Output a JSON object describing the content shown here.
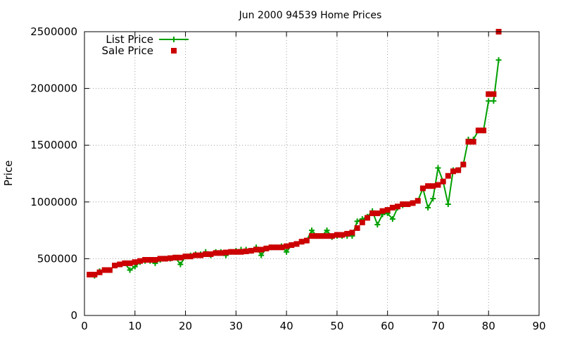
{
  "chart_data": {
    "type": "line",
    "title": "Jun 2000 94539 Home Prices",
    "xlabel": "",
    "ylabel": "Price",
    "xlim": [
      0,
      90
    ],
    "ylim": [
      0,
      2500000
    ],
    "x_ticks": [
      "0",
      "10",
      "20",
      "30",
      "40",
      "50",
      "60",
      "70",
      "80",
      "90"
    ],
    "y_ticks": [
      "0",
      "500000",
      "1000000",
      "1500000",
      "2000000",
      "2500000"
    ],
    "grid": true,
    "legend_position": "top-left",
    "x": [
      1,
      2,
      3,
      4,
      5,
      6,
      7,
      8,
      9,
      10,
      11,
      12,
      13,
      14,
      15,
      16,
      17,
      18,
      19,
      20,
      21,
      22,
      23,
      24,
      25,
      26,
      27,
      28,
      29,
      30,
      31,
      32,
      33,
      34,
      35,
      36,
      37,
      38,
      39,
      40,
      41,
      42,
      43,
      44,
      45,
      46,
      47,
      48,
      49,
      50,
      51,
      52,
      53,
      54,
      55,
      56,
      57,
      58,
      59,
      60,
      61,
      62,
      63,
      64,
      65,
      66,
      67,
      68,
      69,
      70,
      71,
      72,
      73,
      74,
      75,
      76,
      77,
      78,
      79,
      80,
      81,
      82
    ],
    "series": [
      {
        "name": "List Price",
        "color": "#00a000",
        "marker": "plus",
        "values": [
          360000,
          350000,
          390000,
          400000,
          400000,
          440000,
          450000,
          460000,
          400000,
          430000,
          470000,
          480000,
          480000,
          460000,
          490000,
          500000,
          500000,
          510000,
          450000,
          520000,
          530000,
          540000,
          540000,
          560000,
          530000,
          560000,
          560000,
          530000,
          560000,
          570000,
          580000,
          580000,
          570000,
          600000,
          530000,
          590000,
          600000,
          600000,
          610000,
          560000,
          620000,
          630000,
          650000,
          660000,
          750000,
          700000,
          700000,
          750000,
          690000,
          700000,
          700000,
          700000,
          700000,
          830000,
          850000,
          870000,
          920000,
          800000,
          890000,
          900000,
          850000,
          950000,
          970000,
          980000,
          990000,
          1010000,
          1120000,
          950000,
          1030000,
          1300000,
          1180000,
          980000,
          1280000,
          1280000,
          1330000,
          1550000,
          1550000,
          1630000,
          1630000,
          1890000,
          1890000,
          2250000
        ]
      },
      {
        "name": "Sale Price",
        "color": "#cc0000",
        "marker": "square",
        "values": [
          360000,
          360000,
          380000,
          400000,
          400000,
          440000,
          450000,
          460000,
          460000,
          470000,
          480000,
          490000,
          490000,
          490000,
          500000,
          500000,
          505000,
          510000,
          510000,
          520000,
          520000,
          530000,
          530000,
          540000,
          540000,
          550000,
          550000,
          555000,
          560000,
          560000,
          560000,
          565000,
          570000,
          580000,
          580000,
          590000,
          600000,
          600000,
          600000,
          610000,
          620000,
          630000,
          650000,
          660000,
          700000,
          700000,
          700000,
          700000,
          700000,
          710000,
          710000,
          720000,
          730000,
          770000,
          820000,
          860000,
          900000,
          900000,
          920000,
          930000,
          950000,
          960000,
          980000,
          980000,
          990000,
          1010000,
          1120000,
          1140000,
          1140000,
          1150000,
          1180000,
          1230000,
          1270000,
          1280000,
          1330000,
          1530000,
          1530000,
          1630000,
          1630000,
          1950000,
          1950000,
          2500000
        ]
      }
    ]
  }
}
